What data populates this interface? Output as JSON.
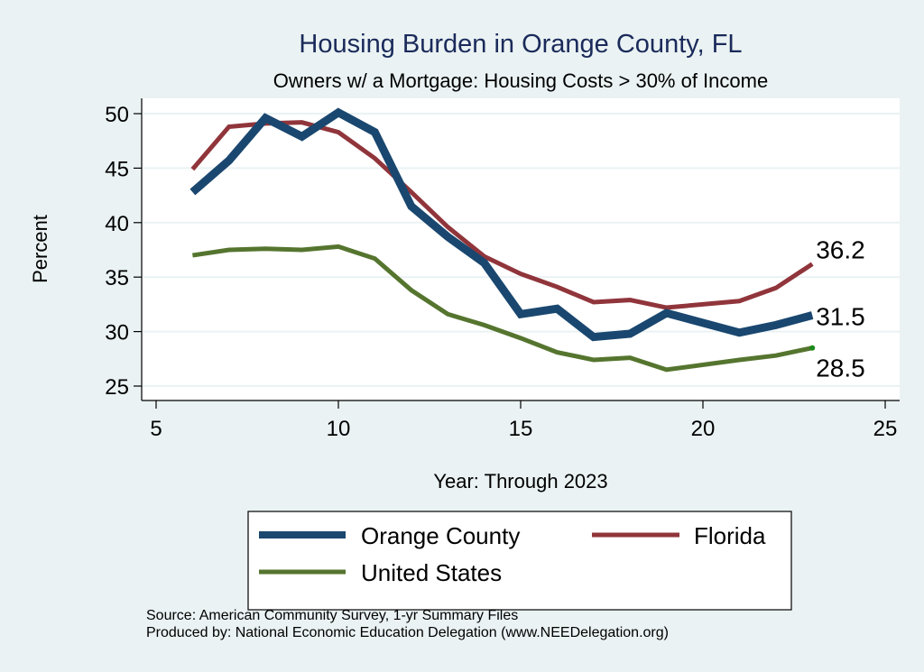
{
  "chart_data": {
    "type": "line",
    "title": "Housing Burden in Orange County, FL",
    "subtitle": "Owners w/ a Mortgage: Housing Costs > 30% of Income",
    "xlabel": "Year: Through 2023",
    "ylabel": "Percent",
    "xlim": [
      5,
      25
    ],
    "ylim": [
      25,
      50
    ],
    "xticks": [
      5,
      10,
      15,
      20,
      25
    ],
    "yticks": [
      25,
      30,
      35,
      40,
      45,
      50
    ],
    "grid": true,
    "legend_position": "bottom",
    "x": [
      6,
      7,
      8,
      9,
      10,
      11,
      12,
      13,
      14,
      15,
      16,
      17,
      18,
      19,
      21,
      22,
      23
    ],
    "series": [
      {
        "name": "Orange County",
        "color": "#1a476f",
        "values": [
          42.8,
          45.7,
          49.6,
          47.9,
          50.1,
          48.3,
          41.5,
          38.7,
          36.3,
          31.6,
          32.1,
          29.5,
          29.8,
          31.7,
          29.9,
          30.6,
          31.5
        ],
        "end_label": "31.5"
      },
      {
        "name": "Florida",
        "color": "#90353b",
        "values": [
          44.9,
          48.8,
          49.1,
          49.2,
          48.3,
          45.9,
          42.8,
          39.6,
          36.9,
          35.3,
          34.1,
          32.7,
          32.9,
          32.2,
          32.8,
          34.0,
          36.2
        ],
        "end_label": "36.2"
      },
      {
        "name": "United States",
        "color": "#55752f",
        "values": [
          37.0,
          37.5,
          37.6,
          37.5,
          37.8,
          36.7,
          33.8,
          31.6,
          30.6,
          29.4,
          28.1,
          27.4,
          27.6,
          26.5,
          27.4,
          27.8,
          28.5
        ],
        "end_label": "28.5"
      }
    ]
  },
  "notes": {
    "source": "Source: American Community Survey, 1-yr Summary Files",
    "producer": "Produced by: National Economic Education Delegation (www.NEEDelegation.org)"
  }
}
